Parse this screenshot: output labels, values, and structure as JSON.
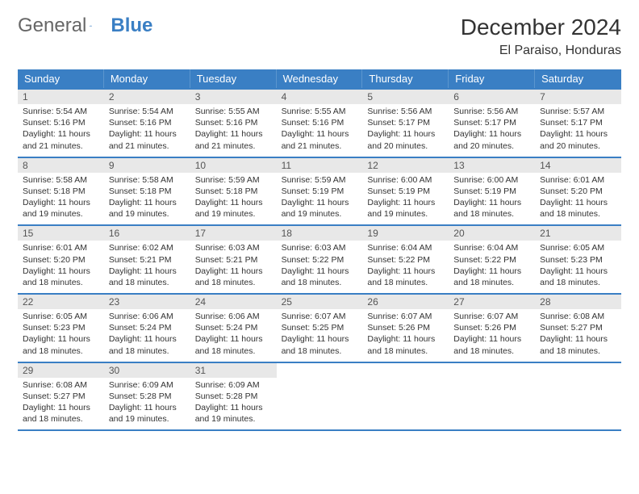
{
  "logo": {
    "general": "General",
    "blue": "Blue"
  },
  "title": "December 2024",
  "location": "El Paraiso, Honduras",
  "colors": {
    "header_bg": "#3a7fc4",
    "header_text": "#ffffff",
    "daynum_bg": "#e8e8e8",
    "rule": "#3a7fc4",
    "text": "#333333",
    "logo_gray": "#666666",
    "logo_blue": "#3a7fc4"
  },
  "day_headers": [
    "Sunday",
    "Monday",
    "Tuesday",
    "Wednesday",
    "Thursday",
    "Friday",
    "Saturday"
  ],
  "weeks": [
    [
      {
        "n": "1",
        "sr": "5:54 AM",
        "ss": "5:16 PM",
        "dl": "11 hours and 21 minutes."
      },
      {
        "n": "2",
        "sr": "5:54 AM",
        "ss": "5:16 PM",
        "dl": "11 hours and 21 minutes."
      },
      {
        "n": "3",
        "sr": "5:55 AM",
        "ss": "5:16 PM",
        "dl": "11 hours and 21 minutes."
      },
      {
        "n": "4",
        "sr": "5:55 AM",
        "ss": "5:16 PM",
        "dl": "11 hours and 21 minutes."
      },
      {
        "n": "5",
        "sr": "5:56 AM",
        "ss": "5:17 PM",
        "dl": "11 hours and 20 minutes."
      },
      {
        "n": "6",
        "sr": "5:56 AM",
        "ss": "5:17 PM",
        "dl": "11 hours and 20 minutes."
      },
      {
        "n": "7",
        "sr": "5:57 AM",
        "ss": "5:17 PM",
        "dl": "11 hours and 20 minutes."
      }
    ],
    [
      {
        "n": "8",
        "sr": "5:58 AM",
        "ss": "5:18 PM",
        "dl": "11 hours and 19 minutes."
      },
      {
        "n": "9",
        "sr": "5:58 AM",
        "ss": "5:18 PM",
        "dl": "11 hours and 19 minutes."
      },
      {
        "n": "10",
        "sr": "5:59 AM",
        "ss": "5:18 PM",
        "dl": "11 hours and 19 minutes."
      },
      {
        "n": "11",
        "sr": "5:59 AM",
        "ss": "5:19 PM",
        "dl": "11 hours and 19 minutes."
      },
      {
        "n": "12",
        "sr": "6:00 AM",
        "ss": "5:19 PM",
        "dl": "11 hours and 19 minutes."
      },
      {
        "n": "13",
        "sr": "6:00 AM",
        "ss": "5:19 PM",
        "dl": "11 hours and 18 minutes."
      },
      {
        "n": "14",
        "sr": "6:01 AM",
        "ss": "5:20 PM",
        "dl": "11 hours and 18 minutes."
      }
    ],
    [
      {
        "n": "15",
        "sr": "6:01 AM",
        "ss": "5:20 PM",
        "dl": "11 hours and 18 minutes."
      },
      {
        "n": "16",
        "sr": "6:02 AM",
        "ss": "5:21 PM",
        "dl": "11 hours and 18 minutes."
      },
      {
        "n": "17",
        "sr": "6:03 AM",
        "ss": "5:21 PM",
        "dl": "11 hours and 18 minutes."
      },
      {
        "n": "18",
        "sr": "6:03 AM",
        "ss": "5:22 PM",
        "dl": "11 hours and 18 minutes."
      },
      {
        "n": "19",
        "sr": "6:04 AM",
        "ss": "5:22 PM",
        "dl": "11 hours and 18 minutes."
      },
      {
        "n": "20",
        "sr": "6:04 AM",
        "ss": "5:22 PM",
        "dl": "11 hours and 18 minutes."
      },
      {
        "n": "21",
        "sr": "6:05 AM",
        "ss": "5:23 PM",
        "dl": "11 hours and 18 minutes."
      }
    ],
    [
      {
        "n": "22",
        "sr": "6:05 AM",
        "ss": "5:23 PM",
        "dl": "11 hours and 18 minutes."
      },
      {
        "n": "23",
        "sr": "6:06 AM",
        "ss": "5:24 PM",
        "dl": "11 hours and 18 minutes."
      },
      {
        "n": "24",
        "sr": "6:06 AM",
        "ss": "5:24 PM",
        "dl": "11 hours and 18 minutes."
      },
      {
        "n": "25",
        "sr": "6:07 AM",
        "ss": "5:25 PM",
        "dl": "11 hours and 18 minutes."
      },
      {
        "n": "26",
        "sr": "6:07 AM",
        "ss": "5:26 PM",
        "dl": "11 hours and 18 minutes."
      },
      {
        "n": "27",
        "sr": "6:07 AM",
        "ss": "5:26 PM",
        "dl": "11 hours and 18 minutes."
      },
      {
        "n": "28",
        "sr": "6:08 AM",
        "ss": "5:27 PM",
        "dl": "11 hours and 18 minutes."
      }
    ],
    [
      {
        "n": "29",
        "sr": "6:08 AM",
        "ss": "5:27 PM",
        "dl": "11 hours and 18 minutes."
      },
      {
        "n": "30",
        "sr": "6:09 AM",
        "ss": "5:28 PM",
        "dl": "11 hours and 19 minutes."
      },
      {
        "n": "31",
        "sr": "6:09 AM",
        "ss": "5:28 PM",
        "dl": "11 hours and 19 minutes."
      },
      {
        "n": "",
        "sr": "",
        "ss": "",
        "dl": ""
      },
      {
        "n": "",
        "sr": "",
        "ss": "",
        "dl": ""
      },
      {
        "n": "",
        "sr": "",
        "ss": "",
        "dl": ""
      },
      {
        "n": "",
        "sr": "",
        "ss": "",
        "dl": ""
      }
    ]
  ],
  "labels": {
    "sunrise": "Sunrise:",
    "sunset": "Sunset:",
    "daylight": "Daylight:"
  }
}
